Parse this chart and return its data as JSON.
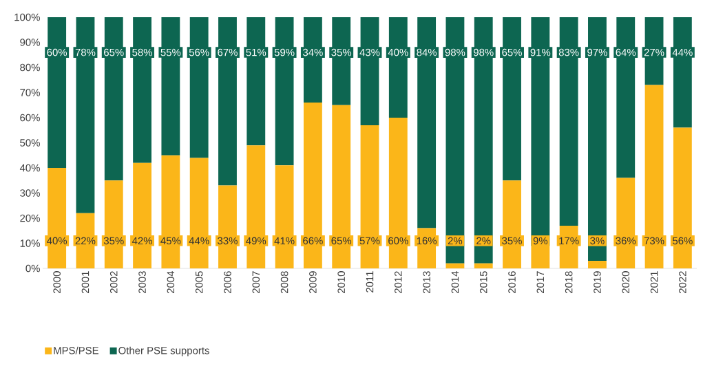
{
  "chart_data": {
    "type": "bar",
    "stacked": true,
    "categories": [
      "2000",
      "2001",
      "2002",
      "2003",
      "2004",
      "2005",
      "2006",
      "2007",
      "2008",
      "2009",
      "2010",
      "2011",
      "2012",
      "2013",
      "2014",
      "2015",
      "2016",
      "2017",
      "2018",
      "2019",
      "2020",
      "2021",
      "2022"
    ],
    "series": [
      {
        "name": "MPS/PSE",
        "color": "#fbb619",
        "values": [
          40,
          22,
          35,
          42,
          45,
          44,
          33,
          49,
          41,
          66,
          65,
          57,
          60,
          16,
          2,
          2,
          35,
          9,
          17,
          3,
          36,
          73,
          56
        ],
        "value_labels": [
          "40%",
          "22%",
          "35%",
          "42%",
          "45%",
          "44%",
          "33%",
          "49%",
          "41%",
          "66%",
          "65%",
          "57%",
          "60%",
          "16%",
          "2%",
          "2%",
          "35%",
          "9%",
          "17%",
          "3%",
          "36%",
          "73%",
          "56%"
        ]
      },
      {
        "name": "Other PSE supports",
        "color": "#0d6651",
        "values": [
          60,
          78,
          65,
          58,
          55,
          56,
          67,
          51,
          59,
          34,
          35,
          43,
          40,
          84,
          98,
          98,
          65,
          91,
          83,
          97,
          64,
          27,
          44
        ],
        "value_labels": [
          "60%",
          "78%",
          "65%",
          "58%",
          "55%",
          "56%",
          "67%",
          "51%",
          "59%",
          "34%",
          "35%",
          "43%",
          "40%",
          "84%",
          "98%",
          "98%",
          "65%",
          "91%",
          "83%",
          "97%",
          "64%",
          "27%",
          "44%"
        ]
      }
    ],
    "ylim": [
      0,
      100
    ],
    "yticks": [
      {
        "value": 0,
        "label": "0%"
      },
      {
        "value": 10,
        "label": "10%"
      },
      {
        "value": 20,
        "label": "20%"
      },
      {
        "value": 30,
        "label": "30%"
      },
      {
        "value": 40,
        "label": "40%"
      },
      {
        "value": 50,
        "label": "50%"
      },
      {
        "value": 60,
        "label": "60%"
      },
      {
        "value": 70,
        "label": "70%"
      },
      {
        "value": 80,
        "label": "80%"
      },
      {
        "value": 90,
        "label": "90%"
      },
      {
        "value": 100,
        "label": "100%"
      }
    ],
    "legend": "bottom"
  }
}
